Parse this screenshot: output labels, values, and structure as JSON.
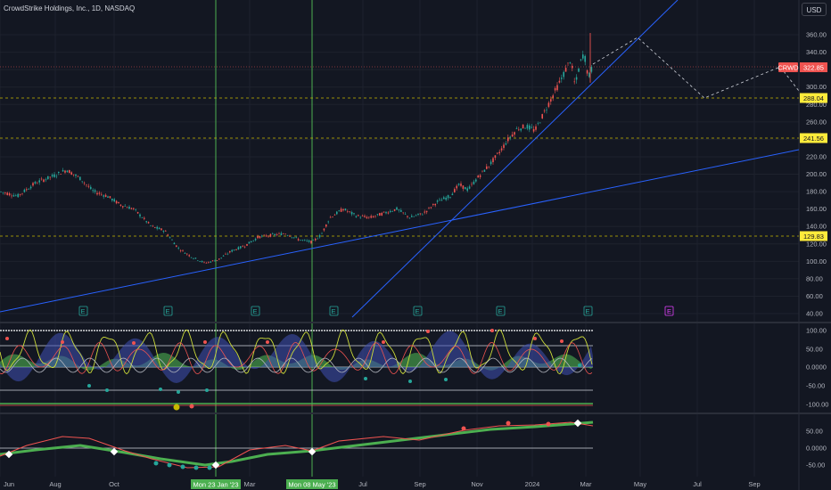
{
  "header": {
    "title": "CrowdStrike Holdings, Inc., 1D, NASDAQ",
    "currency": "USD"
  },
  "price_axis": {
    "ticks": [
      "360.00",
      "340.00",
      "320.00",
      "300.00",
      "280.00",
      "260.00",
      "240.00",
      "220.00",
      "200.00",
      "180.00",
      "160.00",
      "140.00",
      "120.00",
      "100.00",
      "80.00",
      "60.00",
      "40.00"
    ]
  },
  "price_labels": {
    "symbol": "CRWD",
    "last": "322.85",
    "level1": "288.04",
    "level2": "241.56",
    "level3": "129.83"
  },
  "osc1_axis": {
    "ticks": [
      "100.00",
      "50.00",
      "0.0000",
      "-50.00",
      "-100.00"
    ]
  },
  "osc2_axis": {
    "ticks": [
      "50.00",
      "0.0000",
      "-50.00"
    ]
  },
  "time_axis": {
    "labels": [
      "Jun",
      "Aug",
      "Oct",
      "Mar",
      "Jul",
      "Sep",
      "Nov",
      "2024",
      "Mar",
      "May",
      "Jul",
      "Sep"
    ]
  },
  "time_highlights": {
    "first": "Mon 23 Jan '23",
    "second": "Mon 08 May '23"
  },
  "earnings_marker": "E",
  "colors": {
    "bg": "#131722",
    "up": "#26a69a",
    "down": "#ef5350",
    "trend": "#2962ff",
    "highlight": "#4caf50",
    "yellow": "#ffeb3b"
  }
}
